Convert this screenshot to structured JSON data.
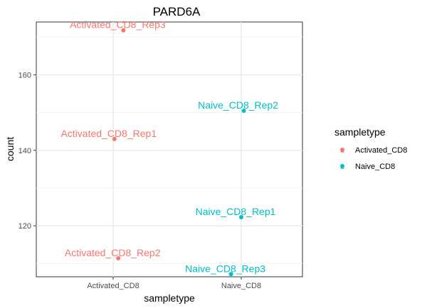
{
  "chart_data": {
    "type": "scatter",
    "title": "PARD6A",
    "xlabel": "sampletype",
    "ylabel": "count",
    "categories": [
      "Activated_CD8",
      "Naive_CD8"
    ],
    "ylim": [
      106.5,
      174
    ],
    "yticks": [
      120,
      140,
      160
    ],
    "grid": true,
    "legend": {
      "title": "sampletype",
      "position": "right",
      "entries": [
        "Activated_CD8",
        "Naive_CD8"
      ]
    },
    "colors": {
      "Activated_CD8": "#F8766D",
      "Naive_CD8": "#00BFC4"
    },
    "points": [
      {
        "category": "Activated_CD8",
        "jitter": 0.08,
        "y": 171.8,
        "label": "Activated_CD8_Rep3",
        "group": "Activated_CD8"
      },
      {
        "category": "Activated_CD8",
        "jitter": 0.01,
        "y": 143.0,
        "label": "Activated_CD8_Rep1",
        "group": "Activated_CD8"
      },
      {
        "category": "Activated_CD8",
        "jitter": 0.04,
        "y": 111.4,
        "label": "Activated_CD8_Rep2",
        "group": "Activated_CD8"
      },
      {
        "category": "Naive_CD8",
        "jitter": 0.02,
        "y": 150.5,
        "label": "Naive_CD8_Rep2",
        "group": "Naive_CD8"
      },
      {
        "category": "Naive_CD8",
        "jitter": 0.0,
        "y": 122.3,
        "label": "Naive_CD8_Rep1",
        "group": "Naive_CD8"
      },
      {
        "category": "Naive_CD8",
        "jitter": -0.08,
        "y": 107.2,
        "label": "Naive_CD8_Rep3",
        "group": "Naive_CD8"
      }
    ]
  }
}
